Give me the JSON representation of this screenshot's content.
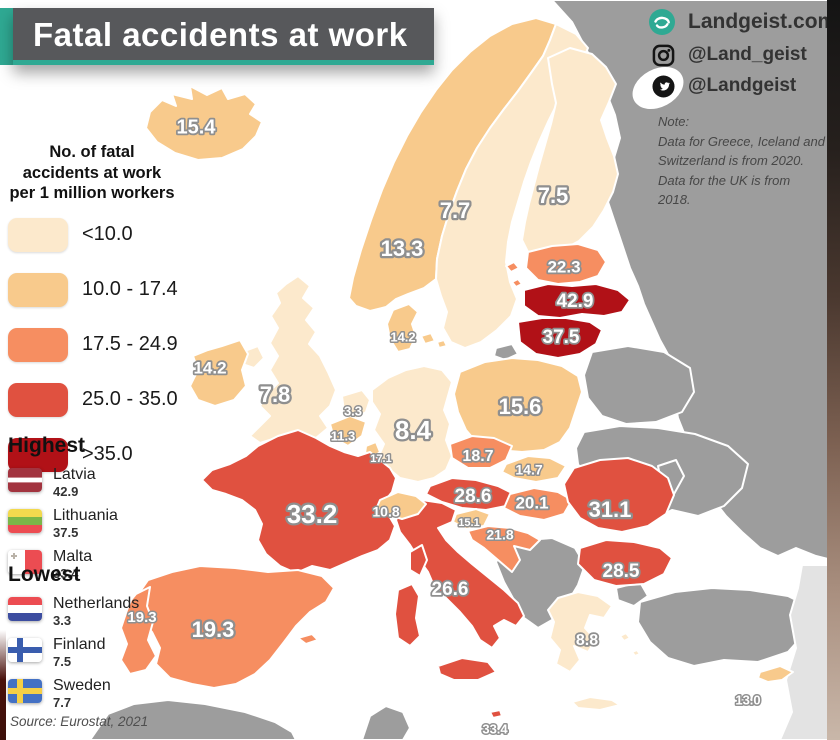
{
  "title": "Fatal accidents at work",
  "branding": {
    "website": "Landgeist.com",
    "instagram_handle": "@Land_geist",
    "twitter_handle": "@Landgeist"
  },
  "note": {
    "heading": "Note:",
    "lines": [
      "Data for Greece, Iceland and",
      "Switzerland is from 2020.",
      "Data for the UK is from 2018."
    ]
  },
  "legend": {
    "title_lines": [
      "No. of fatal",
      "accidents at work",
      "per 1 million workers"
    ],
    "items": [
      {
        "label": "<10.0",
        "color": "#fce9cc"
      },
      {
        "label": "10.0 - 17.4",
        "color": "#f8ca8c"
      },
      {
        "label": "17.5 - 24.9",
        "color": "#f68e61"
      },
      {
        "label": "25.0 - 35.0",
        "color": "#e05140"
      },
      {
        "label": ">35.0",
        "color": "#b11117"
      }
    ]
  },
  "highest": {
    "heading": "Highest",
    "items": [
      {
        "country": "Latvia",
        "value": "42.9",
        "flag": "lv"
      },
      {
        "country": "Lithuania",
        "value": "37.5",
        "flag": "lt"
      },
      {
        "country": "Malta",
        "value": "33.4",
        "flag": "mt"
      }
    ]
  },
  "lowest": {
    "heading": "Lowest",
    "items": [
      {
        "country": "Netherlands",
        "value": "3.3",
        "flag": "nl"
      },
      {
        "country": "Finland",
        "value": "7.5",
        "flag": "fi"
      },
      {
        "country": "Sweden",
        "value": "7.7",
        "flag": "se"
      }
    ]
  },
  "source": "Source: Eurostat, 2021",
  "map": {
    "sea_color": "#ffffff",
    "non_eu_color": "#9d9d9d",
    "edge_land_color": "#e3e3e3",
    "label_outline_color": "#8f8f8f",
    "countries": [
      {
        "key": "iceland",
        "name": "Iceland",
        "value": "15.4",
        "band": 2
      },
      {
        "key": "norway",
        "name": "Norway",
        "value": "13.3",
        "band": 2
      },
      {
        "key": "sweden",
        "name": "Sweden",
        "value": "7.7",
        "band": 1
      },
      {
        "key": "finland",
        "name": "Finland",
        "value": "7.5",
        "band": 1
      },
      {
        "key": "estonia",
        "name": "Estonia",
        "value": "22.3",
        "band": 3
      },
      {
        "key": "latvia",
        "name": "Latvia",
        "value": "42.9",
        "band": 5
      },
      {
        "key": "lithuania",
        "name": "Lithuania",
        "value": "37.5",
        "band": 5
      },
      {
        "key": "denmark",
        "name": "Denmark",
        "value": "14.2",
        "band": 2
      },
      {
        "key": "ireland",
        "name": "Ireland",
        "value": "14.2",
        "band": 2
      },
      {
        "key": "uk",
        "name": "United Kingdom",
        "value": "7.8",
        "band": 1
      },
      {
        "key": "netherlands",
        "name": "Netherlands",
        "value": "3.3",
        "band": 1
      },
      {
        "key": "belgium",
        "name": "Belgium",
        "value": "11.3",
        "band": 2
      },
      {
        "key": "luxembourg",
        "name": "Luxembourg",
        "value": "17.1",
        "band": 2
      },
      {
        "key": "germany",
        "name": "Germany",
        "value": "8.4",
        "band": 1
      },
      {
        "key": "poland",
        "name": "Poland",
        "value": "15.6",
        "band": 2
      },
      {
        "key": "czechia",
        "name": "Czechia",
        "value": "18.7",
        "band": 3
      },
      {
        "key": "slovakia",
        "name": "Slovakia",
        "value": "14.7",
        "band": 2
      },
      {
        "key": "austria",
        "name": "Austria",
        "value": "28.6",
        "band": 4
      },
      {
        "key": "hungary",
        "name": "Hungary",
        "value": "20.1",
        "band": 3
      },
      {
        "key": "slovenia",
        "name": "Slovenia",
        "value": "15.1",
        "band": 2
      },
      {
        "key": "croatia",
        "name": "Croatia",
        "value": "21.8",
        "band": 3
      },
      {
        "key": "romania",
        "name": "Romania",
        "value": "31.1",
        "band": 4
      },
      {
        "key": "bulgaria",
        "name": "Bulgaria",
        "value": "28.5",
        "band": 4
      },
      {
        "key": "italy",
        "name": "Italy",
        "value": "26.6",
        "band": 4
      },
      {
        "key": "france",
        "name": "France",
        "value": "33.2",
        "band": 4
      },
      {
        "key": "switzerland",
        "name": "Switzerland",
        "value": "10.8",
        "band": 2
      },
      {
        "key": "spain",
        "name": "Spain",
        "value": "19.3",
        "band": 3
      },
      {
        "key": "portugal",
        "name": "Portugal",
        "value": "19.3",
        "band": 3
      },
      {
        "key": "greece",
        "name": "Greece",
        "value": "8.8",
        "band": 1
      },
      {
        "key": "cyprus",
        "name": "Cyprus",
        "value": "13.0",
        "band": 2
      },
      {
        "key": "malta",
        "name": "Malta",
        "value": "33.4",
        "band": 4
      }
    ]
  }
}
